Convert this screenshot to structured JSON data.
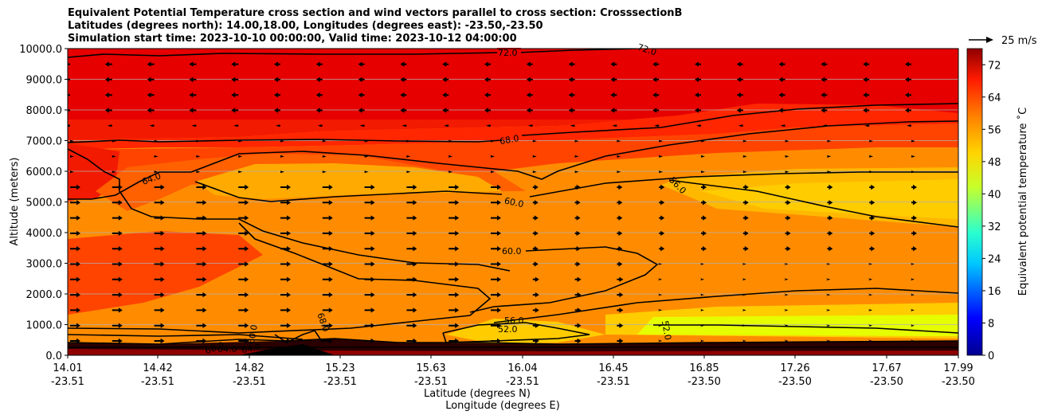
{
  "title": {
    "line1": "Equivalent Potential Temperature cross section and wind vectors parallel to cross section: CrosssectionB",
    "line2": "Latitudes (degrees north): 14.00,18.00, Longitudes (degrees east): -23.50,-23.50",
    "line3": "Simulation start time: 2023-10-10 00:00:00, Valid time: 2023-10-12 04:00:00"
  },
  "chart_data": {
    "type": "heatmap",
    "title": "Equivalent Potential Temperature cross section and wind vectors parallel to cross section: CrosssectionB",
    "ylabel": "Altitude (meters)",
    "xlabel_lat": "Latitude (degrees N)",
    "xlabel_lon": "Longitude (degrees E)",
    "ylim": [
      0,
      10000
    ],
    "y_ticks": [
      "0.0",
      "1000.0",
      "2000.0",
      "3000.0",
      "4000.0",
      "5000.0",
      "6000.0",
      "7000.0",
      "8000.0",
      "9000.0",
      "10000.0"
    ],
    "x_ticks": [
      {
        "lat": "14.01",
        "lon": "-23.51"
      },
      {
        "lat": "14.42",
        "lon": "-23.51"
      },
      {
        "lat": "14.82",
        "lon": "-23.51"
      },
      {
        "lat": "15.23",
        "lon": "-23.51"
      },
      {
        "lat": "15.63",
        "lon": "-23.51"
      },
      {
        "lat": "16.04",
        "lon": "-23.51"
      },
      {
        "lat": "16.45",
        "lon": "-23.51"
      },
      {
        "lat": "16.85",
        "lon": "-23.50"
      },
      {
        "lat": "17.26",
        "lon": "-23.50"
      },
      {
        "lat": "17.67",
        "lon": "-23.50"
      },
      {
        "lat": "17.99",
        "lon": "-23.50"
      }
    ],
    "grid": true,
    "colorbar": {
      "label": "Equivalent potential temperature $^\\circ$C",
      "label_text": "Equivalent potential temperature ˚C",
      "ticks": [
        "0",
        "8",
        "16",
        "24",
        "32",
        "40",
        "48",
        "56",
        "64",
        "72"
      ],
      "range": [
        0,
        76
      ]
    },
    "quiver_key": "25 m/s",
    "contour_labels": [
      "72.0",
      "72.0",
      "68.0",
      "64.0",
      "60.0",
      "60.0",
      "56.0",
      "56.0",
      "52.0",
      "52.0",
      "64.0",
      "68.0",
      "60.0",
      "68.0",
      "64.0",
      "68.0"
    ]
  }
}
